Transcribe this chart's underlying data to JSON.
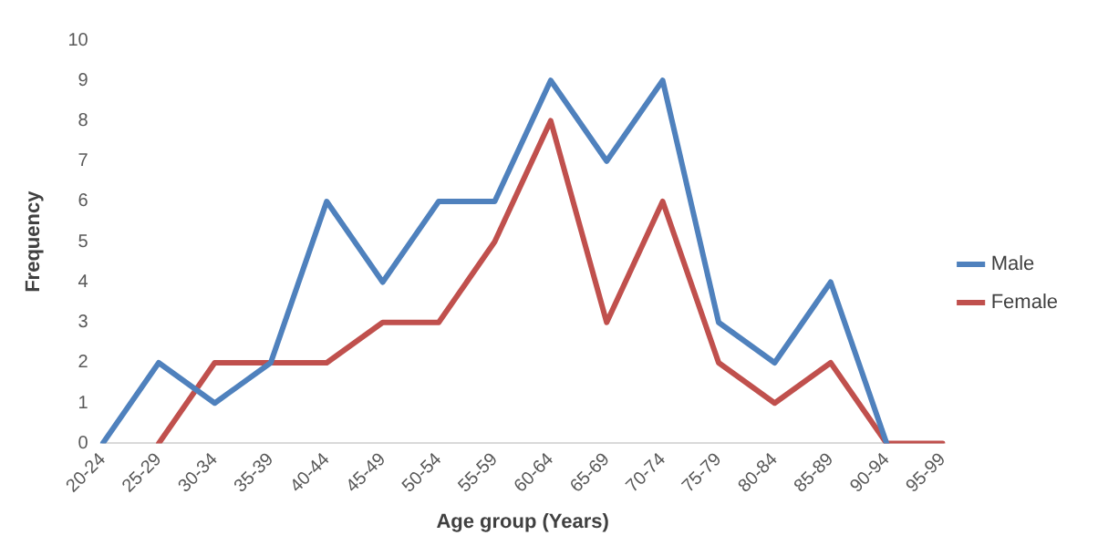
{
  "chart_data": {
    "type": "line",
    "xlabel": "Age group (Years)",
    "ylabel": "Frequency",
    "categories": [
      "20-24",
      "25-29",
      "30-34",
      "35-39",
      "40-44",
      "45-49",
      "50-54",
      "55-59",
      "60-64",
      "65-69",
      "70-74",
      "75-79",
      "80-84",
      "85-89",
      "90-94",
      "95-99"
    ],
    "series": [
      {
        "name": "Male",
        "color": "#4f81bd",
        "values": [
          0,
          2,
          1,
          2,
          6,
          4,
          6,
          6,
          9,
          7,
          9,
          3,
          2,
          4,
          0,
          null
        ]
      },
      {
        "name": "Female",
        "color": "#c0504d",
        "values": [
          null,
          0,
          2,
          2,
          2,
          3,
          3,
          5,
          8,
          3,
          6,
          2,
          1,
          2,
          0,
          0
        ]
      }
    ],
    "ylim": [
      0,
      10
    ],
    "yticks": [
      0,
      1,
      2,
      3,
      4,
      5,
      6,
      7,
      8,
      9,
      10
    ],
    "grid": false,
    "legend": "right",
    "marker": "none",
    "line_style": "solid"
  }
}
